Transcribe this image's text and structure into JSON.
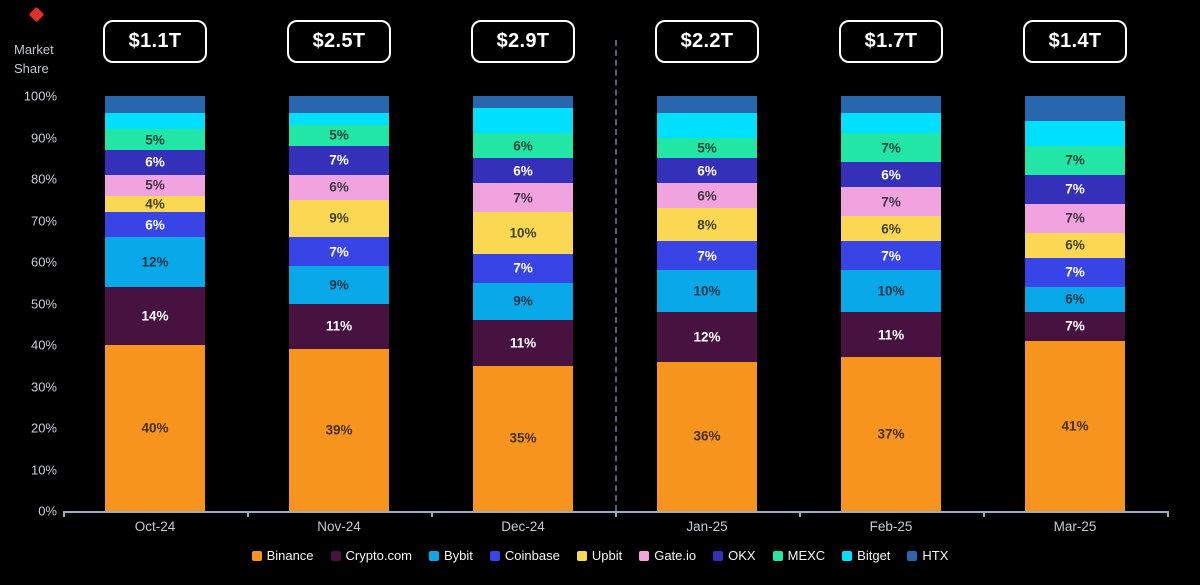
{
  "market_share_label": {
    "line1": "Market",
    "line2": "Share"
  },
  "chart_data": {
    "type": "bar",
    "stacked": true,
    "ylabel": "Market Share",
    "categories": [
      "Oct-24",
      "Nov-24",
      "Dec-24",
      "Jan-25",
      "Feb-25",
      "Mar-25"
    ],
    "totals": [
      "$1.1T",
      "$2.5T",
      "$2.9T",
      "$2.2T",
      "$1.7T",
      "$1.4T"
    ],
    "y_ticks": [
      "100%",
      "90%",
      "80%",
      "70%",
      "60%",
      "50%",
      "40%",
      "30%",
      "20%",
      "10%",
      "0%"
    ],
    "ylim": [
      0,
      100
    ],
    "legend_position": "bottom",
    "divider_after_category": "Dec-24",
    "series": [
      {
        "name": "Binance",
        "color": "#F7941D",
        "label_style": "dark",
        "values": [
          40,
          39,
          35,
          36,
          37,
          41
        ]
      },
      {
        "name": "Crypto.com",
        "color": "#47123F",
        "label_style": "light",
        "values": [
          14,
          11,
          11,
          12,
          11,
          7
        ]
      },
      {
        "name": "Bybit",
        "color": "#09A8E8",
        "label_style": "dark",
        "values": [
          12,
          9,
          9,
          10,
          10,
          6
        ]
      },
      {
        "name": "Coinbase",
        "color": "#3844E6",
        "label_style": "light",
        "values": [
          6,
          7,
          7,
          7,
          7,
          7
        ]
      },
      {
        "name": "Upbit",
        "color": "#FAD853",
        "label_style": "dark",
        "values": [
          4,
          9,
          10,
          8,
          6,
          6
        ]
      },
      {
        "name": "Gate.io",
        "color": "#F0A3DE",
        "label_style": "dark",
        "values": [
          5,
          6,
          7,
          6,
          7,
          7
        ]
      },
      {
        "name": "OKX",
        "color": "#3430BA",
        "label_style": "light",
        "values": [
          6,
          7,
          6,
          6,
          6,
          7
        ]
      },
      {
        "name": "MEXC",
        "color": "#21E6A6",
        "label_style": "dark",
        "values": [
          5,
          5,
          6,
          5,
          7,
          7
        ]
      },
      {
        "name": "Bitget",
        "color": "#00DFFB",
        "label_style": "dark",
        "values": [
          4,
          3,
          6,
          6,
          5,
          6
        ]
      },
      {
        "name": "HTX",
        "color": "#2866AE",
        "label_style": "light",
        "values": [
          4,
          4,
          3,
          4,
          4,
          6
        ]
      }
    ],
    "hide_value_labels_for": [
      "Bitget",
      "HTX"
    ],
    "value_suffix": "%"
  },
  "colors": {
    "background": "#000000",
    "axis": "#9caebc",
    "tick_text": "#c7ced7",
    "badge_border": "#ffffff",
    "divider": "#4f6073",
    "dark_value_text": "rgba(16,20,26,0.78)",
    "light_value_text": "#ffffff"
  }
}
